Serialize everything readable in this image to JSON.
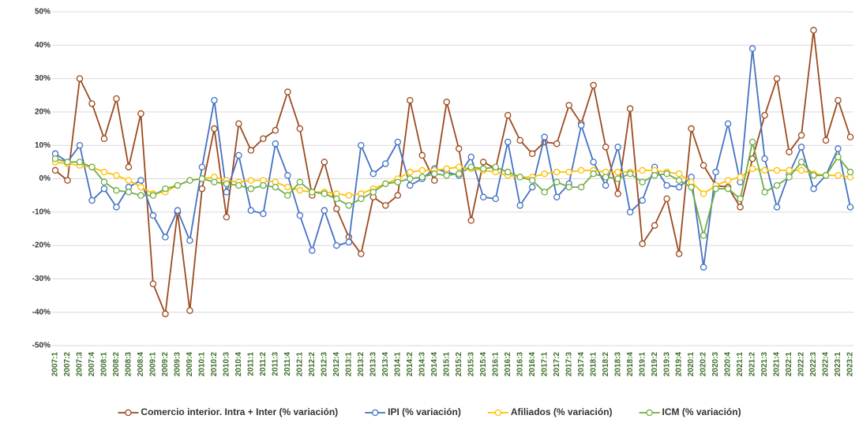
{
  "chart_data": {
    "type": "line",
    "categories": [
      "2007:1",
      "2007:2",
      "2007:3",
      "2007:4",
      "2008:1",
      "2008:2",
      "2008:3",
      "2008:4",
      "2009:1",
      "2009:2",
      "2009:3",
      "2009:4",
      "2010:1",
      "2010:2",
      "2010:3",
      "2010:4",
      "2011:1",
      "2011:2",
      "2011:3",
      "2011:4",
      "2012:1",
      "2012:2",
      "2012:3",
      "2012:4",
      "2013:1",
      "2013:2",
      "2013:3",
      "2013:4",
      "2014:1",
      "2014:2",
      "2014:3",
      "2014:4",
      "2015:1",
      "2015:2",
      "2015:3",
      "2015:4",
      "2016:1",
      "2016:2",
      "2016:3",
      "2016:4",
      "2017:1",
      "2017:2",
      "2017:3",
      "2017:4",
      "2018:1",
      "2018:2",
      "2018:3",
      "2018:4",
      "2019:1",
      "2019:2",
      "2019:3",
      "2019:4",
      "2020:1",
      "2020:2",
      "2020:3",
      "2020:4",
      "2021:1",
      "2021:2",
      "2021:3",
      "2021:4",
      "2022:1",
      "2022:2",
      "2022:3",
      "2022:4",
      "2023:1",
      "2023:2"
    ],
    "series": [
      {
        "name": "Comercio interior. Intra + Inter (% variación)",
        "color": "#9c4a1e",
        "values": [
          2.5,
          -0.5,
          30,
          22.5,
          12,
          24,
          3.5,
          19.5,
          -31.5,
          -40.5,
          -10,
          -39.5,
          -3,
          15,
          -11.5,
          16.5,
          8.5,
          12,
          14.5,
          26,
          15,
          -5,
          5,
          -9,
          -17.5,
          -22.5,
          -5.5,
          -8,
          -5,
          23.5,
          7,
          -0.5,
          23,
          9,
          -12.5,
          5,
          3,
          19,
          11.5,
          7.5,
          11,
          10.5,
          22,
          16.5,
          28,
          9.5,
          -4.5,
          21,
          -19.5,
          -14,
          -6,
          -22.5,
          15,
          4,
          -2,
          -2.5,
          -8.5,
          6,
          19,
          30,
          8,
          13,
          44.5,
          11.5,
          23.5,
          12.5
        ]
      },
      {
        "name": "IPI (% variación)",
        "color": "#4472c4",
        "values": [
          7.5,
          5,
          10,
          -6.5,
          -3,
          -8.5,
          -2.5,
          -0.5,
          -11,
          -17.5,
          -9.5,
          -18.5,
          3.5,
          23.5,
          -4,
          7,
          -9.5,
          -10.5,
          10.5,
          1,
          -11,
          -21.5,
          -9.5,
          -20,
          -19,
          10,
          1.5,
          4.5,
          11,
          -2,
          0,
          3,
          2,
          1,
          6.5,
          -5.5,
          -6,
          11,
          -8,
          -2.5,
          12.5,
          -5.5,
          -1.5,
          16,
          5,
          -2,
          9.5,
          -10,
          -6.5,
          3.5,
          -2,
          -2.5,
          0.5,
          -26.5,
          2,
          16.5,
          -1,
          39,
          6,
          -8.5,
          1.5,
          9.5,
          -3,
          1,
          9,
          -8.5
        ]
      },
      {
        "name": "Afiliados (% variación)",
        "color": "#ffc000",
        "values": [
          5,
          4.5,
          4,
          3.5,
          2,
          1,
          -0.5,
          -2.5,
          -4.5,
          -4,
          -2,
          -0.5,
          0,
          0.5,
          -0.5,
          -1,
          -0.5,
          -0.5,
          -1,
          -2.5,
          -3.5,
          -4,
          -4,
          -4.5,
          -5,
          -4.5,
          -3,
          -1.5,
          0,
          2,
          2.5,
          2.5,
          3,
          3.5,
          3,
          2.5,
          2,
          1,
          0.5,
          0.5,
          1.5,
          2,
          2,
          2.5,
          2.5,
          2,
          2,
          2,
          2.5,
          2.5,
          2,
          1.5,
          -1,
          -4.5,
          -2,
          -0.5,
          0.5,
          3,
          2.5,
          2.5,
          2.5,
          2.5,
          1.5,
          1,
          1,
          0.5
        ]
      },
      {
        "name": "ICM (% variación)",
        "color": "#70ad47",
        "values": [
          6,
          5,
          5,
          3.5,
          -1,
          -3.5,
          -4,
          -5,
          -5,
          -3,
          -2,
          -0.5,
          0,
          -1,
          -1.5,
          -2,
          -3,
          -2,
          -2.5,
          -5,
          -1,
          -4,
          -4.5,
          -6,
          -8,
          -6,
          -4,
          -1.5,
          -1,
          0,
          0.5,
          1.5,
          1,
          1.5,
          3.5,
          3,
          3.5,
          2,
          0.5,
          -0.5,
          -4,
          -1,
          -2.5,
          -2.5,
          1.5,
          0.5,
          0,
          1.5,
          -1,
          1,
          1.5,
          -0.5,
          -2.5,
          -17,
          -3,
          -3,
          -6,
          11,
          -4,
          -2,
          0.5,
          5,
          1,
          1,
          6.5,
          2
        ]
      }
    ],
    "ylim": [
      -50,
      50
    ],
    "yticks": [
      {
        "value": -50,
        "label": "-50%"
      },
      {
        "value": -40,
        "label": "-40%"
      },
      {
        "value": -30,
        "label": "-30%"
      },
      {
        "value": -20,
        "label": "-20%"
      },
      {
        "value": -10,
        "label": "-10%"
      },
      {
        "value": 0,
        "label": "0%"
      },
      {
        "value": 10,
        "label": "10%"
      },
      {
        "value": 20,
        "label": "20%"
      },
      {
        "value": 30,
        "label": "30%"
      },
      {
        "value": 40,
        "label": "40%"
      },
      {
        "value": 50,
        "label": "50%"
      }
    ],
    "grid": true,
    "legend": "bottom"
  }
}
